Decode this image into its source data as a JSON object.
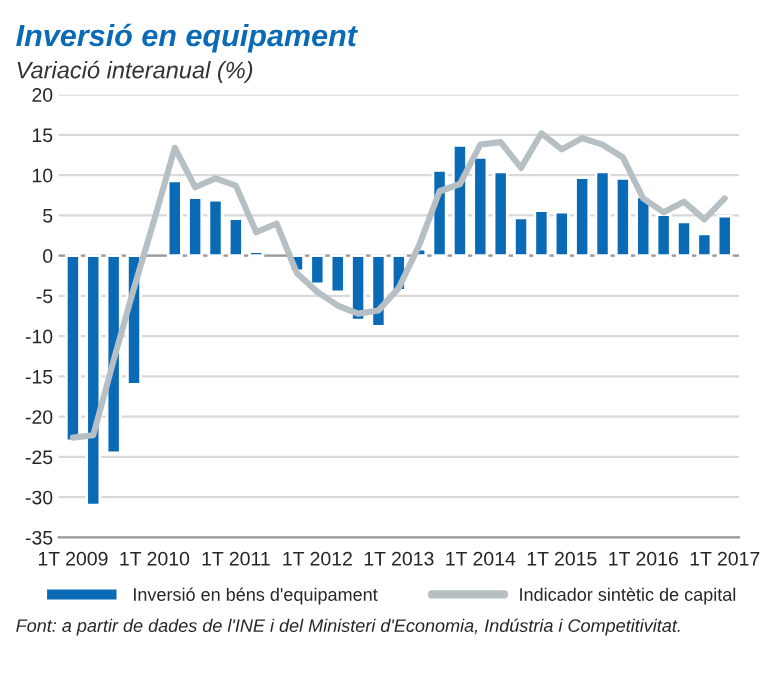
{
  "chart_data": {
    "type": "bar",
    "title": "Inversió en equipament",
    "subtitle": "Variació interanual (%)",
    "categories": [
      "1T 2009",
      null,
      null,
      null,
      "1T 2010",
      null,
      null,
      null,
      "1T 2011",
      null,
      null,
      null,
      "1T 2012",
      null,
      null,
      null,
      "1T 2013",
      null,
      null,
      null,
      "1T 2014",
      null,
      null,
      null,
      "1T 2015",
      null,
      null,
      null,
      "1T 2016",
      null,
      null,
      null,
      "1T 2017"
    ],
    "series": [
      {
        "name": "Inversió en béns d'equipament",
        "color": "#0a6ab6",
        "values": [
          -23,
          -31,
          -24.5,
          -16,
          null,
          9.3,
          7.2,
          6.9,
          4.6,
          0.5,
          null,
          -1.9,
          -3.5,
          -4.5,
          -8,
          -8.8,
          -4.3,
          0.8,
          10.6,
          13.7,
          12.2,
          10.4,
          4.7,
          5.6,
          5.4,
          9.7,
          10.4,
          9.6,
          7.3,
          5.1,
          4.2,
          2.7,
          4.9
        ]
      },
      {
        "name": "Indicador sintètic de capital",
        "type": "line",
        "color": "#b5bfc4",
        "values": [
          -22.6,
          -22.3,
          -13,
          -4,
          4.5,
          13.4,
          8.5,
          9.6,
          8.7,
          2.9,
          4.0,
          -2.2,
          -4.5,
          -6.2,
          -7.2,
          -6.8,
          -4,
          1.3,
          8,
          8.9,
          13.8,
          14.1,
          10.9,
          15.2,
          13.2,
          14.6,
          13.8,
          12.2,
          7.1,
          5.4,
          6.7,
          4.5,
          7.1
        ]
      }
    ],
    "ylim": [
      -35,
      20
    ],
    "yticks": [
      -35,
      -30,
      -25,
      -20,
      -15,
      -10,
      -5,
      0,
      5,
      10,
      15,
      20
    ],
    "grid": "y",
    "legend": "bottom",
    "annotations": [
      "Font: a partir de dades de l'INE i del Ministeri d'Economia, Indústria i Competitivitat."
    ]
  }
}
